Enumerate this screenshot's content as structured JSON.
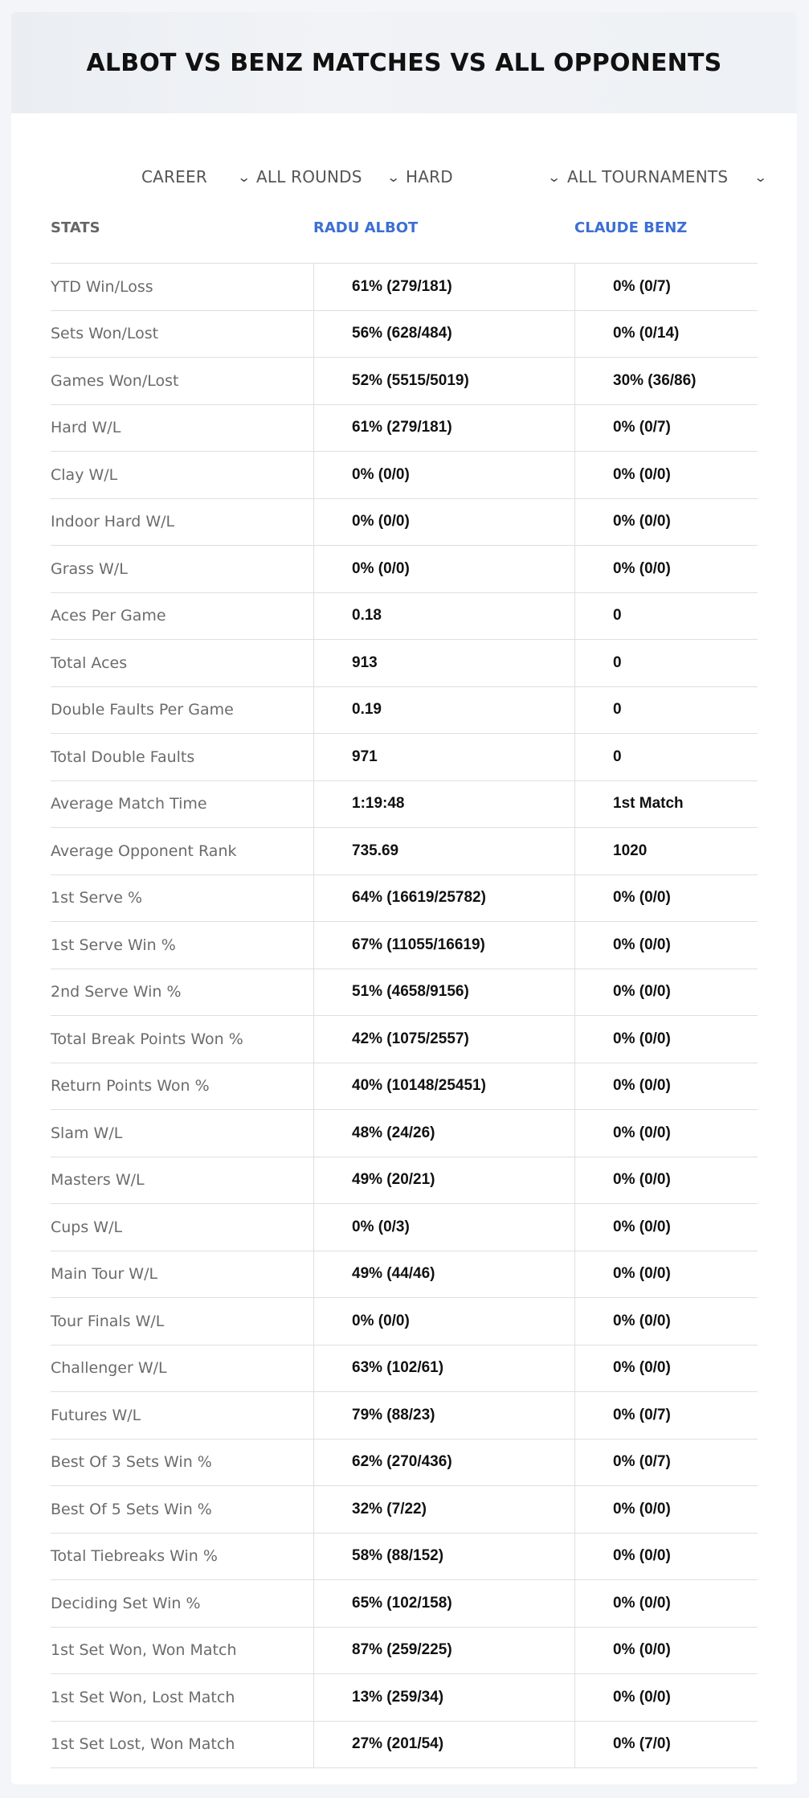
{
  "header": {
    "title": "ALBOT VS BENZ MATCHES VS ALL OPPONENTS"
  },
  "filters": [
    {
      "label": "CAREER",
      "icon": "chevron-down-icon"
    },
    {
      "label": "ALL ROUNDS",
      "icon": "chevron-down-icon"
    },
    {
      "label": "HARD",
      "icon": "chevron-down-icon"
    },
    {
      "label": "ALL TOURNAMENTS",
      "icon": "chevron-down-icon"
    }
  ],
  "columns": {
    "stats": "STATS",
    "player1": "RADU ALBOT",
    "player2": "CLAUDE BENZ"
  },
  "accent_color": "#3d6fd3",
  "rows": [
    {
      "label": "YTD Win/Loss",
      "p1": "61% (279/181)",
      "p2": "0% (0/7)"
    },
    {
      "label": "Sets Won/Lost",
      "p1": "56% (628/484)",
      "p2": "0% (0/14)"
    },
    {
      "label": "Games Won/Lost",
      "p1": "52% (5515/5019)",
      "p2": "30% (36/86)"
    },
    {
      "label": "Hard W/L",
      "p1": "61% (279/181)",
      "p2": "0% (0/7)"
    },
    {
      "label": "Clay W/L",
      "p1": "0% (0/0)",
      "p2": "0% (0/0)"
    },
    {
      "label": "Indoor Hard W/L",
      "p1": "0% (0/0)",
      "p2": "0% (0/0)"
    },
    {
      "label": "Grass W/L",
      "p1": "0% (0/0)",
      "p2": "0% (0/0)"
    },
    {
      "label": "Aces Per Game",
      "p1": "0.18",
      "p2": "0"
    },
    {
      "label": "Total Aces",
      "p1": "913",
      "p2": "0"
    },
    {
      "label": "Double Faults Per Game",
      "p1": "0.19",
      "p2": "0"
    },
    {
      "label": "Total Double Faults",
      "p1": "971",
      "p2": "0"
    },
    {
      "label": "Average Match Time",
      "p1": "1:19:48",
      "p2": "1st Match"
    },
    {
      "label": "Average Opponent Rank",
      "p1": "735.69",
      "p2": "1020"
    },
    {
      "label": "1st Serve %",
      "p1": "64% (16619/25782)",
      "p2": "0% (0/0)"
    },
    {
      "label": "1st Serve Win %",
      "p1": "67% (11055/16619)",
      "p2": "0% (0/0)"
    },
    {
      "label": "2nd Serve Win %",
      "p1": "51% (4658/9156)",
      "p2": "0% (0/0)"
    },
    {
      "label": "Total Break Points Won %",
      "p1": "42% (1075/2557)",
      "p2": "0% (0/0)"
    },
    {
      "label": "Return Points Won %",
      "p1": "40% (10148/25451)",
      "p2": "0% (0/0)"
    },
    {
      "label": "Slam W/L",
      "p1": "48% (24/26)",
      "p2": "0% (0/0)"
    },
    {
      "label": "Masters W/L",
      "p1": "49% (20/21)",
      "p2": "0% (0/0)"
    },
    {
      "label": "Cups W/L",
      "p1": "0% (0/3)",
      "p2": "0% (0/0)"
    },
    {
      "label": "Main Tour W/L",
      "p1": "49% (44/46)",
      "p2": "0% (0/0)"
    },
    {
      "label": "Tour Finals W/L",
      "p1": "0% (0/0)",
      "p2": "0% (0/0)"
    },
    {
      "label": "Challenger W/L",
      "p1": "63% (102/61)",
      "p2": "0% (0/0)"
    },
    {
      "label": "Futures W/L",
      "p1": "79% (88/23)",
      "p2": "0% (0/7)"
    },
    {
      "label": "Best Of 3 Sets Win %",
      "p1": "62% (270/436)",
      "p2": "0% (0/7)"
    },
    {
      "label": "Best Of 5 Sets Win %",
      "p1": "32% (7/22)",
      "p2": "0% (0/0)"
    },
    {
      "label": "Total Tiebreaks Win %",
      "p1": "58% (88/152)",
      "p2": "0% (0/0)"
    },
    {
      "label": "Deciding Set Win %",
      "p1": "65% (102/158)",
      "p2": "0% (0/0)"
    },
    {
      "label": "1st Set Won, Won Match",
      "p1": "87% (259/225)",
      "p2": "0% (0/0)"
    },
    {
      "label": "1st Set Won, Lost Match",
      "p1": "13% (259/34)",
      "p2": "0% (0/0)"
    },
    {
      "label": "1st Set Lost, Won Match",
      "p1": "27% (201/54)",
      "p2": "0% (7/0)"
    }
  ]
}
